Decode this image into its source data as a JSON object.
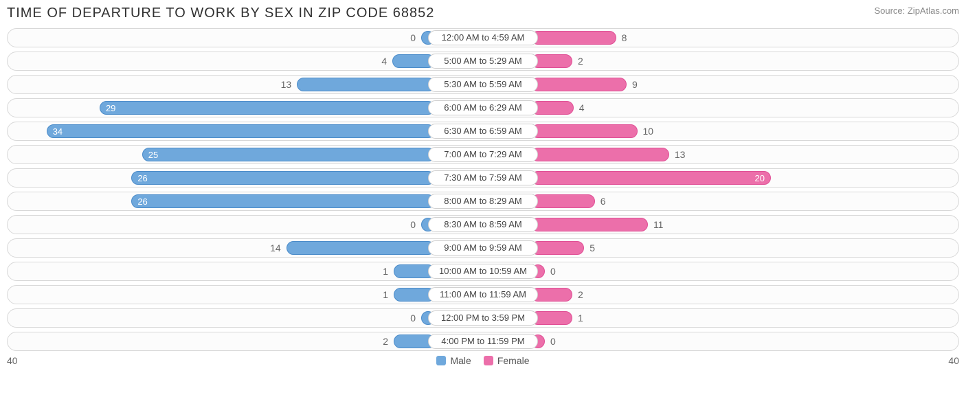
{
  "title": "TIME OF DEPARTURE TO WORK BY SEX IN ZIP CODE 68852",
  "source": "Source: ZipAtlas.com",
  "chart": {
    "type": "diverging-bar",
    "axis_max": 40,
    "axis_left_label": "40",
    "axis_right_label": "40",
    "colors": {
      "male_fill": "#6fa8dc",
      "male_border": "#4a8bc9",
      "female_fill": "#ec6faa",
      "female_border": "#e04f95",
      "row_border": "#d8d8d8",
      "row_bg": "#fcfcfc",
      "text_outside": "#666666",
      "text_inside": "#ffffff",
      "center_label_bg": "#ffffff",
      "center_label_border": "#d0d0d0",
      "title_color": "#303030"
    },
    "value_inside_threshold": 18,
    "bar_min_widths": {
      "zero": 20,
      "small": 60
    },
    "legend": [
      {
        "label": "Male",
        "color": "#6fa8dc"
      },
      {
        "label": "Female",
        "color": "#ec6faa"
      }
    ],
    "rows": [
      {
        "label": "12:00 AM to 4:59 AM",
        "male": 0,
        "female": 8
      },
      {
        "label": "5:00 AM to 5:29 AM",
        "male": 4,
        "female": 2
      },
      {
        "label": "5:30 AM to 5:59 AM",
        "male": 13,
        "female": 9
      },
      {
        "label": "6:00 AM to 6:29 AM",
        "male": 29,
        "female": 4
      },
      {
        "label": "6:30 AM to 6:59 AM",
        "male": 34,
        "female": 10
      },
      {
        "label": "7:00 AM to 7:29 AM",
        "male": 25,
        "female": 13
      },
      {
        "label": "7:30 AM to 7:59 AM",
        "male": 26,
        "female": 20
      },
      {
        "label": "8:00 AM to 8:29 AM",
        "male": 26,
        "female": 6
      },
      {
        "label": "8:30 AM to 8:59 AM",
        "male": 0,
        "female": 11
      },
      {
        "label": "9:00 AM to 9:59 AM",
        "male": 14,
        "female": 5
      },
      {
        "label": "10:00 AM to 10:59 AM",
        "male": 1,
        "female": 0
      },
      {
        "label": "11:00 AM to 11:59 AM",
        "male": 1,
        "female": 2
      },
      {
        "label": "12:00 PM to 3:59 PM",
        "male": 0,
        "female": 1
      },
      {
        "label": "4:00 PM to 11:59 PM",
        "male": 2,
        "female": 0
      }
    ]
  }
}
